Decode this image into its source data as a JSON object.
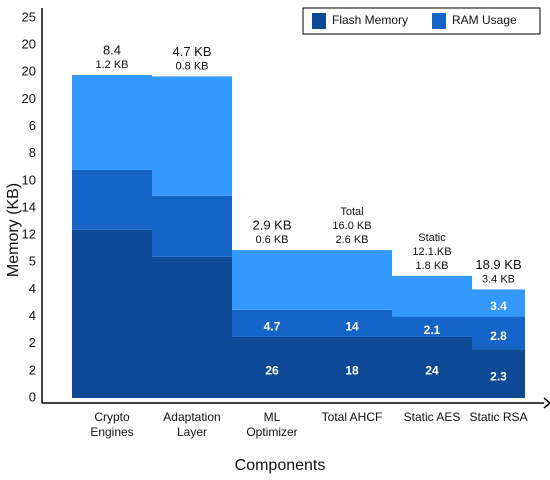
{
  "chart_data": {
    "type": "bar",
    "stacked": true,
    "x_label": "Components",
    "y_label": "Memory (KB)",
    "categories": [
      [
        "Crypto",
        "Engines"
      ],
      [
        "Adaptation",
        "Layer"
      ],
      [
        "ML",
        "Optimizer"
      ],
      [
        "Total AHCF"
      ],
      [
        "Static AES"
      ],
      [
        "Static RSA"
      ]
    ],
    "series": [
      {
        "name": "Flash Memory",
        "color": "#0d4a96",
        "values": [
          6.2,
          5.2,
          2.25,
          2.25,
          2.25,
          1.8
        ]
      },
      {
        "name": "RAM Usage",
        "color": "#1565c8",
        "values": [
          2.2,
          2.25,
          1.0,
          1.0,
          0.75,
          1.2
        ]
      },
      {
        "color": "#3399ff",
        "values": [
          3.5,
          4.4,
          2.2,
          2.2,
          1.5,
          1.0
        ]
      }
    ],
    "segment_texts": [
      [],
      [],
      [
        "26",
        "4.7"
      ],
      [
        "18",
        "14"
      ],
      [
        "24",
        "2.1"
      ],
      [
        "2.3",
        "2.8",
        "3.4"
      ]
    ],
    "top_texts": [
      [
        "8.4",
        "1.2 KB"
      ],
      [
        "4.7 KB",
        "0.8 KB"
      ],
      [
        "2.9 KB",
        "0.6 KB"
      ],
      [
        "Total",
        "16.0 KB",
        "2.6 KB"
      ],
      [
        "Static",
        "12.1.KB",
        "1.8 KB"
      ],
      [
        "18.9 KB",
        "3.4 KB"
      ]
    ],
    "ylim": [
      0,
      14
    ],
    "yticks": [
      {
        "value": 0,
        "label": "0"
      },
      {
        "value": 1,
        "label": "2"
      },
      {
        "value": 2,
        "label": "2"
      },
      {
        "value": 3,
        "label": "4"
      },
      {
        "value": 4,
        "label": "4"
      },
      {
        "value": 5,
        "label": "5"
      },
      {
        "value": 6,
        "label": "12"
      },
      {
        "value": 7,
        "label": "14"
      },
      {
        "value": 8,
        "label": "10"
      },
      {
        "value": 9,
        "label": "8"
      },
      {
        "value": 10,
        "label": "6"
      },
      {
        "value": 11,
        "label": "20"
      },
      {
        "value": 12,
        "label": "20"
      },
      {
        "value": 13,
        "label": "20"
      },
      {
        "value": 14,
        "label": "25"
      }
    ],
    "legend": "upper right"
  }
}
